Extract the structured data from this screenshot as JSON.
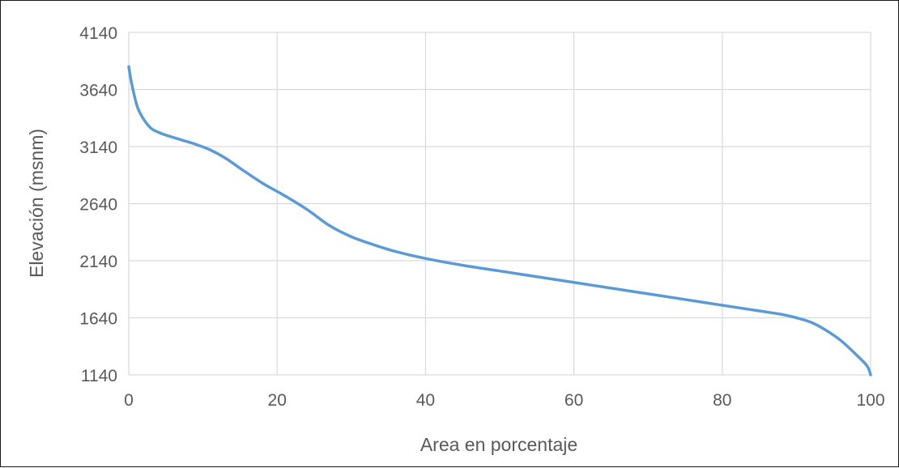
{
  "chart_data": {
    "type": "line",
    "title": "",
    "xlabel": "Area en porcentaje",
    "ylabel": "Elevación (msnm)",
    "xlim": [
      0,
      100
    ],
    "ylim": [
      1140,
      4140
    ],
    "x_ticks": [
      0,
      20,
      40,
      60,
      80,
      100
    ],
    "y_ticks": [
      1140,
      1640,
      2140,
      2640,
      3140,
      3640,
      4140
    ],
    "grid": true,
    "legend": "none",
    "series": [
      {
        "color": "#5b9bd5",
        "x": [
          0,
          0.3,
          0.7,
          1.2,
          2,
          3,
          4,
          5,
          7,
          9,
          11,
          13,
          15,
          18,
          21,
          24,
          27,
          30,
          33,
          36,
          40,
          45,
          50,
          55,
          60,
          65,
          70,
          75,
          80,
          85,
          88,
          90,
          92,
          94,
          96,
          98,
          99.5,
          100
        ],
        "y": [
          3840,
          3720,
          3600,
          3480,
          3380,
          3300,
          3265,
          3240,
          3200,
          3160,
          3110,
          3040,
          2950,
          2820,
          2710,
          2590,
          2450,
          2350,
          2280,
          2220,
          2160,
          2100,
          2050,
          2000,
          1950,
          1900,
          1850,
          1800,
          1750,
          1700,
          1670,
          1640,
          1600,
          1530,
          1440,
          1320,
          1220,
          1140
        ]
      }
    ]
  }
}
